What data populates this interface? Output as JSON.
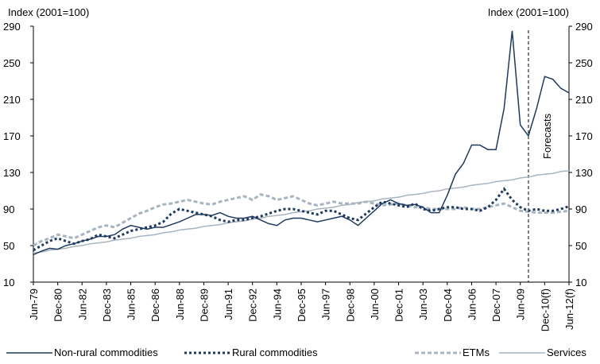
{
  "chart_data": {
    "type": "line",
    "y_label": "Index (2001=100)",
    "y2_label": "Index (2001=100)",
    "annotation": "Forecasts",
    "categories": [
      "Jun-79",
      null,
      null,
      "Dec-80",
      null,
      null,
      "Jun-82",
      null,
      null,
      "Dec-83",
      null,
      null,
      "Jun-85",
      null,
      null,
      "Dec-86",
      null,
      null,
      "Jun-88",
      null,
      null,
      "Dec-89",
      null,
      null,
      "Jun-91",
      null,
      null,
      "Dec-92",
      null,
      null,
      "Jun-94",
      null,
      null,
      "Dec-95",
      null,
      null,
      "Jun-97",
      null,
      null,
      "Dec-98",
      null,
      null,
      "Jun-00",
      null,
      null,
      "Dec-01",
      null,
      null,
      "Jun-03",
      null,
      null,
      "Dec-04",
      null,
      null,
      "Jun-06",
      null,
      null,
      "Dec-07",
      null,
      null,
      "Jun-09",
      null,
      null,
      "Dec-10(f)",
      null,
      null,
      "Jun-12(f)"
    ],
    "ylim": [
      10,
      290
    ],
    "yticks": [
      10,
      50,
      90,
      130,
      170,
      210,
      250,
      290
    ],
    "y2lim": [
      10,
      290
    ],
    "y2ticks": [
      10,
      50,
      90,
      130,
      170,
      210,
      250,
      290
    ],
    "series": [
      {
        "name": "Non-rural commodities",
        "color": "#1f3a5f",
        "style": "solid",
        "values": [
          40,
          44,
          47,
          46,
          50,
          52,
          55,
          57,
          60,
          60,
          62,
          68,
          72,
          70,
          68,
          70,
          70,
          73,
          76,
          80,
          84,
          84,
          83,
          86,
          82,
          80,
          80,
          82,
          78,
          74,
          72,
          78,
          80,
          80,
          78,
          76,
          78,
          80,
          82,
          78,
          72,
          80,
          88,
          96,
          100,
          96,
          94,
          95,
          92,
          86,
          86,
          105,
          128,
          140,
          160,
          160,
          155,
          155,
          200,
          285,
          182,
          170,
          200,
          235,
          232,
          222,
          217
        ]
      },
      {
        "name": "Rural commodities",
        "color": "#1f3a5f",
        "style": "dotted",
        "values": [
          45,
          50,
          55,
          58,
          55,
          52,
          55,
          57,
          62,
          60,
          58,
          62,
          66,
          68,
          70,
          72,
          76,
          85,
          90,
          88,
          86,
          84,
          82,
          78,
          76,
          78,
          78,
          80,
          82,
          85,
          88,
          90,
          90,
          88,
          86,
          84,
          88,
          88,
          84,
          80,
          78,
          85,
          92,
          98,
          96,
          94,
          92,
          96,
          90,
          88,
          90,
          92,
          92,
          90,
          90,
          88,
          92,
          100,
          112,
          100,
          92,
          88,
          90,
          88,
          88,
          90,
          93
        ]
      },
      {
        "name": "ETMs",
        "color": "#a9b4c2",
        "style": "dashed",
        "values": [
          50,
          55,
          58,
          62,
          60,
          58,
          62,
          66,
          70,
          72,
          70,
          75,
          80,
          85,
          88,
          92,
          95,
          96,
          98,
          100,
          98,
          96,
          95,
          98,
          100,
          102,
          104,
          100,
          106,
          104,
          100,
          102,
          104,
          100,
          96,
          94,
          96,
          98,
          96,
          96,
          96,
          98,
          96,
          94,
          95,
          96,
          94,
          92,
          92,
          90,
          90,
          90,
          90,
          92,
          90,
          90,
          92,
          94,
          96,
          92,
          88,
          87,
          86,
          86,
          86,
          87,
          88
        ]
      },
      {
        "name": "Services",
        "color": "#a9b4c2",
        "style": "solid",
        "values": [
          42,
          43,
          45,
          46,
          47,
          49,
          50,
          52,
          53,
          54,
          56,
          57,
          58,
          60,
          61,
          62,
          64,
          65,
          67,
          68,
          69,
          71,
          72,
          73,
          75,
          76,
          77,
          79,
          80,
          82,
          83,
          84,
          86,
          87,
          88,
          90,
          91,
          92,
          94,
          95,
          97,
          98,
          99,
          101,
          102,
          103,
          105,
          106,
          107,
          109,
          110,
          112,
          113,
          114,
          116,
          117,
          118,
          120,
          121,
          122,
          124,
          125,
          127,
          128,
          129,
          131,
          132
        ]
      }
    ]
  }
}
